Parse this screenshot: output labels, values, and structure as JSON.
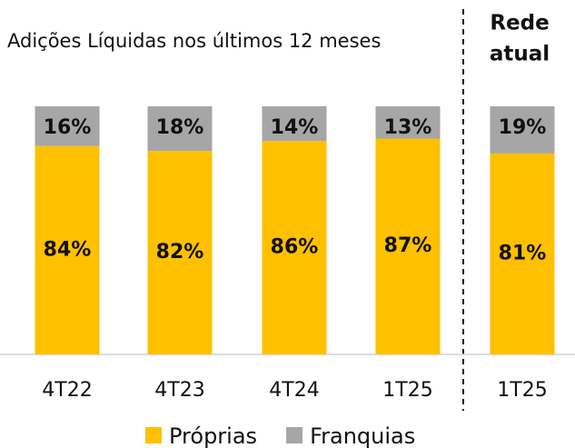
{
  "chart_data": {
    "type": "stacked_bar",
    "subtitle": "Adições Líquidas nos últimos 12 meses",
    "annotation": [
      "Rede",
      "atual"
    ],
    "categories": [
      "4T22",
      "4T23",
      "4T24",
      "1T25",
      "1T25"
    ],
    "series": [
      {
        "name": "Próprias",
        "color": "#FFC000",
        "values": [
          84,
          82,
          86,
          87,
          81
        ],
        "value_labels": [
          "84%",
          "82%",
          "86%",
          "87%",
          "81%"
        ]
      },
      {
        "name": "Franquias",
        "color": "#A6A6A6",
        "values": [
          16,
          18,
          14,
          13,
          19
        ],
        "value_labels": [
          "16%",
          "18%",
          "14%",
          "13%",
          "19%"
        ]
      }
    ],
    "ylim": [
      0,
      100
    ]
  }
}
